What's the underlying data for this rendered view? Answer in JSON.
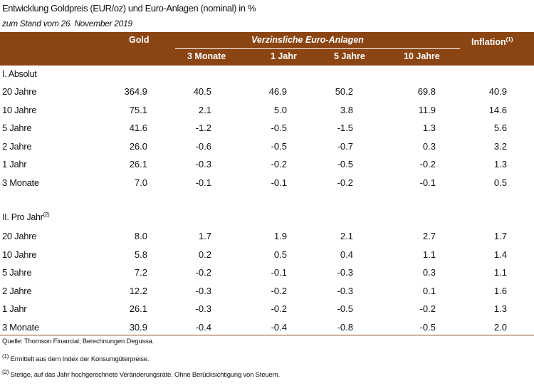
{
  "title": "Entwicklung Goldpreis (EUR/oz) und Euro-Anlagen (nominal) in %",
  "subtitle": "zum Stand vom 26. November 2019",
  "header": {
    "gold": "Gold",
    "group": "Verzinsliche Euro-Anlagen",
    "inflation": "Inflation",
    "inflation_sup": "(1)",
    "cols": [
      "3 Monate",
      "1 Jahr",
      "5 Jahre",
      "10 Jahre"
    ]
  },
  "sections": [
    {
      "label": "I. Absolut",
      "label_sup": "",
      "rows": [
        {
          "label": "20 Jahre",
          "vals": [
            "364.9",
            "40.5",
            "46.9",
            "50.2",
            "69.8",
            "40.9"
          ]
        },
        {
          "label": "10 Jahre",
          "vals": [
            "75.1",
            "2.1",
            "5.0",
            "3.8",
            "11.9",
            "14.6"
          ]
        },
        {
          "label": "5 Jahre",
          "vals": [
            "41.6",
            "-1.2",
            "-0.5",
            "-1.5",
            "1.3",
            "5.6"
          ]
        },
        {
          "label": "2 Jahre",
          "vals": [
            "26.0",
            "-0.6",
            "-0.5",
            "-0.7",
            "0.3",
            "3.2"
          ]
        },
        {
          "label": "1 Jahr",
          "vals": [
            "26.1",
            "-0.3",
            "-0.2",
            "-0.5",
            "-0.2",
            "1.3"
          ]
        },
        {
          "label": "3 Monate",
          "vals": [
            "7.0",
            "-0.1",
            "-0.1",
            "-0.2",
            "-0.1",
            "0.5"
          ]
        }
      ]
    },
    {
      "label": "II. Pro Jahr",
      "label_sup": "(2)",
      "rows": [
        {
          "label": "20 Jahre",
          "vals": [
            "8.0",
            "1.7",
            "1.9",
            "2.1",
            "2.7",
            "1.7"
          ]
        },
        {
          "label": "10 Jahre",
          "vals": [
            "5.8",
            "0.2",
            "0.5",
            "0.4",
            "1.1",
            "1.4"
          ]
        },
        {
          "label": "5 Jahre",
          "vals": [
            "7.2",
            "-0.2",
            "-0.1",
            "-0.3",
            "0.3",
            "1.1"
          ]
        },
        {
          "label": "2 Jahre",
          "vals": [
            "12.2",
            "-0.3",
            "-0.2",
            "-0.3",
            "0.1",
            "1.6"
          ]
        },
        {
          "label": "1 Jahr",
          "vals": [
            "26.1",
            "-0.3",
            "-0.2",
            "-0.5",
            "-0.2",
            "1.3"
          ]
        },
        {
          "label": "3 Monate",
          "vals": [
            "30.9",
            "-0.4",
            "-0.4",
            "-0.8",
            "-0.5",
            "2.0"
          ]
        }
      ]
    }
  ],
  "footnotes": {
    "source": "Quelle: Thomson Financial; Berechnungen Degussa.",
    "n1_mark": "(1)",
    "n1": "Ermittelt aus dem Index der Konsumgüterpreise.",
    "n2_mark": "(2)",
    "n2": "Stetige, auf das Jahr hochgerechnete Veränderungsrate. Ohne Berücksichtigung von Steuern."
  },
  "colors": {
    "header_bg": "#8b4513",
    "header_text": "#ffffff"
  }
}
